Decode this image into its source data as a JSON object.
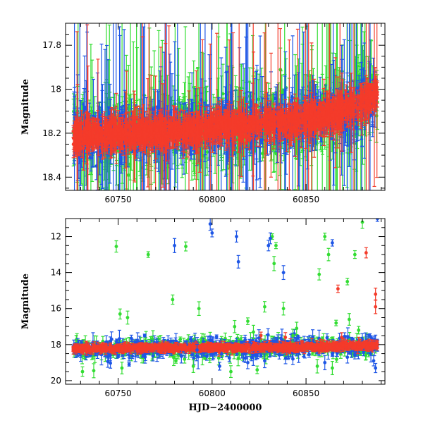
{
  "colors": {
    "green": "#33dd33",
    "blue": "#1e56e6",
    "red": "#f43b2a",
    "frame": "#000000"
  },
  "chart_data": [
    {
      "type": "scatter",
      "panel": "top",
      "xlabel": "",
      "ylabel": "Magnitude",
      "xlim": [
        60722,
        60892
      ],
      "ylim": [
        17.7,
        18.46
      ],
      "y_inverted": true,
      "xticks": [
        60750,
        60800,
        60850
      ],
      "xtick_labels": [
        "60750",
        "60800",
        "60850"
      ],
      "yticks": [
        17.8,
        18.0,
        18.2,
        18.4
      ],
      "ytick_labels": [
        "17.8",
        "18",
        "18.2",
        "18.4"
      ],
      "grid": false,
      "legend": "none",
      "baseline": [
        [
          60726,
          18.21
        ],
        [
          60760,
          18.2
        ],
        [
          60800,
          18.17
        ],
        [
          60840,
          18.15
        ],
        [
          60870,
          18.1
        ],
        [
          60888,
          18.02
        ]
      ],
      "series": [
        {
          "color": "green",
          "scatter": 0.1,
          "values": "dense photometric points with large error bars, many beyond axis limits"
        },
        {
          "color": "blue",
          "scatter": 0.07,
          "values": "dense photometric points with error bars"
        },
        {
          "color": "red",
          "scatter": 0.04,
          "values": "dense photometric points tightly following baseline"
        }
      ]
    },
    {
      "type": "scatter",
      "panel": "bottom",
      "xlabel": "HJD−2400000",
      "ylabel": "Magnitude",
      "xlim": [
        60722,
        60892
      ],
      "ylim": [
        11,
        20.2
      ],
      "y_inverted": true,
      "xticks": [
        60750,
        60800,
        60850
      ],
      "xtick_labels": [
        "60750",
        "60800",
        "60850"
      ],
      "yticks": [
        12,
        14,
        16,
        18,
        20
      ],
      "ytick_labels": [
        "12",
        "14",
        "16",
        "18",
        "20"
      ],
      "grid": false,
      "legend": "none",
      "outliers": [
        {
          "series": "green",
          "points": [
            [
              60749,
              12.55
            ],
            [
              60766,
              13.0
            ],
            [
              60786,
              12.55
            ],
            [
              60751,
              16.3
            ],
            [
              60755,
              16.5
            ],
            [
              60779,
              15.5
            ],
            [
              60793,
              16.0
            ],
            [
              60828,
              15.9
            ],
            [
              60838,
              16.0
            ],
            [
              60860,
              12.0
            ],
            [
              60862,
              13.0
            ],
            [
              60857,
              14.1
            ],
            [
              60872,
              14.5
            ],
            [
              60876,
              13.0
            ],
            [
              60880,
              11.2
            ],
            [
              60832,
              12.0
            ],
            [
              60834,
              12.5
            ],
            [
              60833,
              13.5
            ],
            [
              60812,
              17.0
            ],
            [
              60819,
              16.7
            ],
            [
              60845,
              17.1
            ],
            [
              60866,
              16.8
            ],
            [
              60873,
              16.6
            ],
            [
              60878,
              17.2
            ],
            [
              60843,
              17.5
            ],
            [
              60822,
              17.3
            ],
            [
              60731,
              19.5
            ],
            [
              60737,
              19.45
            ],
            [
              60752,
              19.3
            ],
            [
              60810,
              19.5
            ],
            [
              60824,
              19.4
            ],
            [
              60856,
              19.2
            ],
            [
              60864,
              19.3
            ],
            [
              60790,
              19.2
            ]
          ]
        },
        {
          "series": "blue",
          "points": [
            [
              60780,
              12.5
            ],
            [
              60799,
              11.3
            ],
            [
              60800,
              11.8
            ],
            [
              60813,
              12.0
            ],
            [
              60814,
              13.4
            ],
            [
              60830,
              12.5
            ],
            [
              60831,
              12.1
            ],
            [
              60838,
              14.0
            ],
            [
              60864,
              12.35
            ],
            [
              60888,
              11.0
            ],
            [
              60792,
              18.3
            ],
            [
              60819,
              19.0
            ],
            [
              60828,
              18.9
            ],
            [
              60843,
              18.8
            ],
            [
              60860,
              19.0
            ],
            [
              60876,
              18.6
            ],
            [
              60886,
              18.9
            ],
            [
              60887,
              19.3
            ],
            [
              60804,
              19.2
            ],
            [
              60872,
              18.7
            ]
          ]
        },
        {
          "series": "red",
          "points": [
            [
              60867,
              14.9
            ],
            [
              60882,
              12.9
            ],
            [
              60887,
              15.2
            ],
            [
              60887,
              15.9
            ],
            [
              60839,
              17.6
            ],
            [
              60869,
              17.6
            ],
            [
              60826,
              17.5
            ]
          ]
        }
      ]
    }
  ]
}
